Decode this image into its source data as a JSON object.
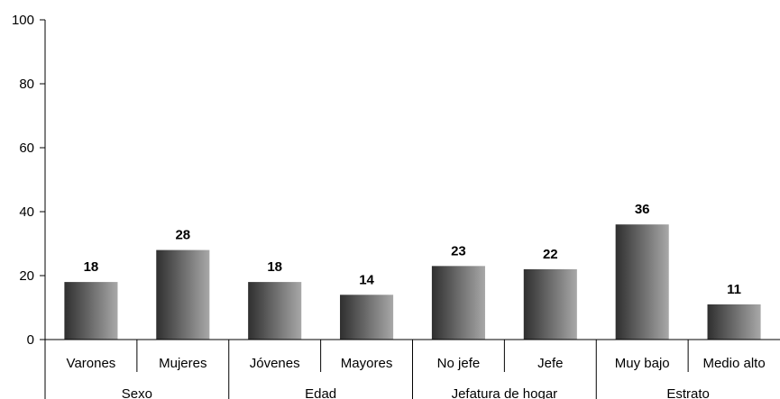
{
  "chart_data": {
    "type": "bar",
    "title": "",
    "xlabel": "",
    "ylabel": "",
    "ylim": [
      0,
      100
    ],
    "yticks": [
      0,
      20,
      40,
      60,
      80,
      100
    ],
    "grid": false,
    "legend": "none",
    "categories": [
      "Varones",
      "Mujeres",
      "Jóvenes",
      "Mayores",
      "No jefe",
      "Jefe",
      "Muy bajo",
      "Medio alto"
    ],
    "values": [
      18,
      28,
      18,
      14,
      23,
      22,
      36,
      11
    ],
    "groups": [
      {
        "label": "Sexo",
        "count": 2
      },
      {
        "label": "Edad",
        "count": 2
      },
      {
        "label": "Jefatura de hogar",
        "count": 2
      },
      {
        "label": "Estrato",
        "count": 2
      }
    ],
    "colors": {
      "bar_dark": "#2f2f2f",
      "bar_light": "#a8a8a8"
    }
  }
}
